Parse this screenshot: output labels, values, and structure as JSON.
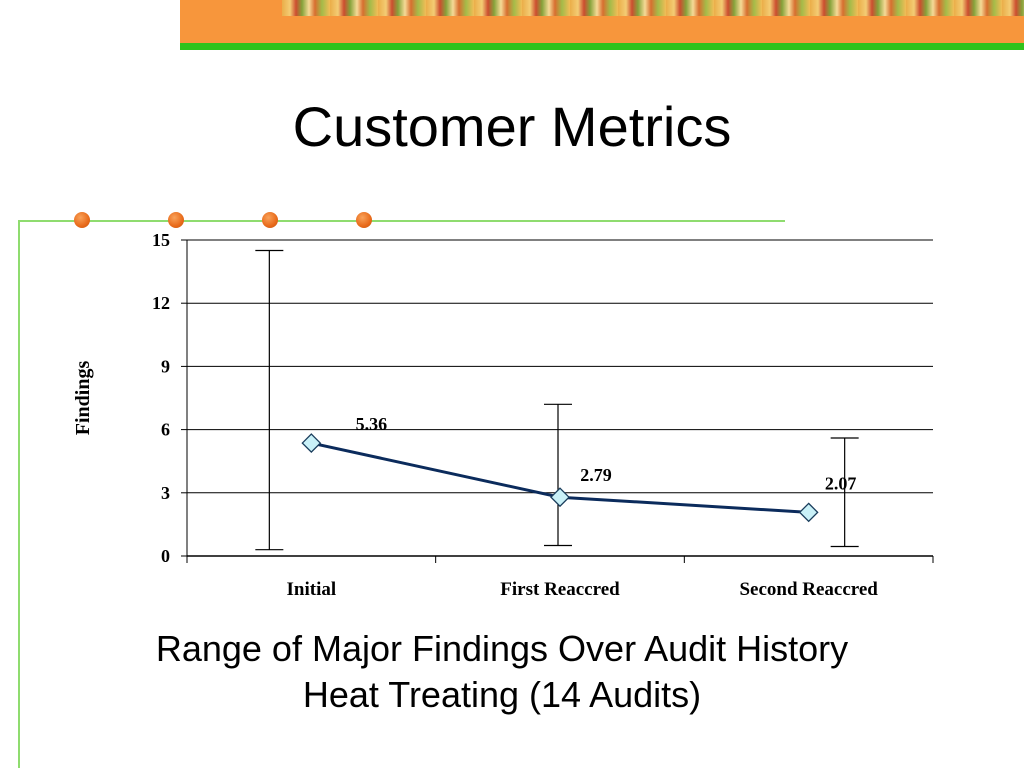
{
  "slide": {
    "title": "Customer Metrics",
    "caption_line1": "Range of Major Findings Over Audit History",
    "caption_line2": "Heat Treating (14 Audits)"
  },
  "colors": {
    "banner_orange": "#f7963c",
    "banner_green": "#2fc21b",
    "frame_line": "#8fdc6f",
    "bullet_dots": "#e86a1a",
    "series_line": "#0b2b5c",
    "marker_fill": "#c9f1f8"
  },
  "chart_data": {
    "type": "line",
    "title": "",
    "xlabel": "",
    "ylabel": "Findings",
    "categories": [
      "Initial",
      "First Reaccred",
      "Second Reaccred"
    ],
    "series": [
      {
        "values": [
          5.36,
          2.79,
          2.07
        ],
        "data_labels": [
          "5.36",
          "2.79",
          "2.07"
        ],
        "error_range": [
          [
            0.3,
            14.5
          ],
          [
            0.5,
            7.2
          ],
          [
            0.45,
            5.6
          ]
        ]
      }
    ],
    "ylim": [
      0,
      15
    ],
    "yticks": [
      0,
      3,
      6,
      9,
      12,
      15
    ],
    "ytick_labels": [
      "0",
      "3",
      "6",
      "9",
      "12",
      "15"
    ],
    "grid": true,
    "legend": "none"
  }
}
